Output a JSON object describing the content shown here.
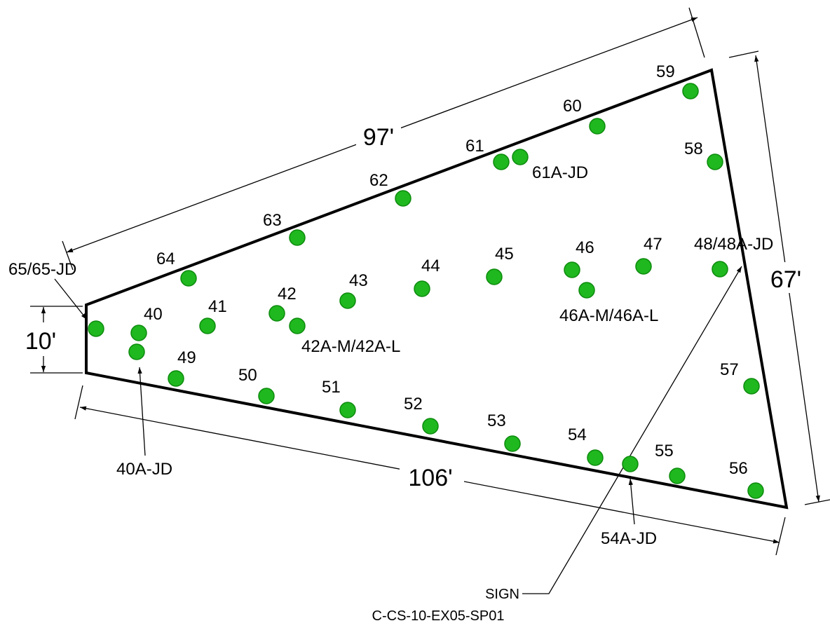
{
  "dimensions": {
    "top": "97'",
    "right": "67'",
    "bottom": "106'",
    "left": "10'"
  },
  "colors": {
    "outline": "#000000",
    "point_fill": "#1fb81f",
    "point_stroke": "#0d8a0d"
  },
  "point_labels": {
    "p40": "40",
    "p41": "41",
    "p42": "42",
    "p43": "43",
    "p44": "44",
    "p45": "45",
    "p46": "46",
    "p47": "47",
    "p48": "48/48A-JD",
    "p49": "49",
    "p50": "50",
    "p51": "51",
    "p52": "52",
    "p53": "53",
    "p54": "54",
    "p55": "55",
    "p56": "56",
    "p57": "57",
    "p58": "58",
    "p59": "59",
    "p60": "60",
    "p61": "61",
    "p61a": "61A-JD",
    "p62": "62",
    "p63": "63",
    "p64": "64",
    "p65": "65/65-JD",
    "p42a": "42A-M/42A-L",
    "p46a": "46A-M/46A-L",
    "p40a": "40A-JD",
    "p54a": "54A-JD"
  },
  "sign_label": "SIGN",
  "drawing_id": "C-CS-10-EX05-SP01"
}
